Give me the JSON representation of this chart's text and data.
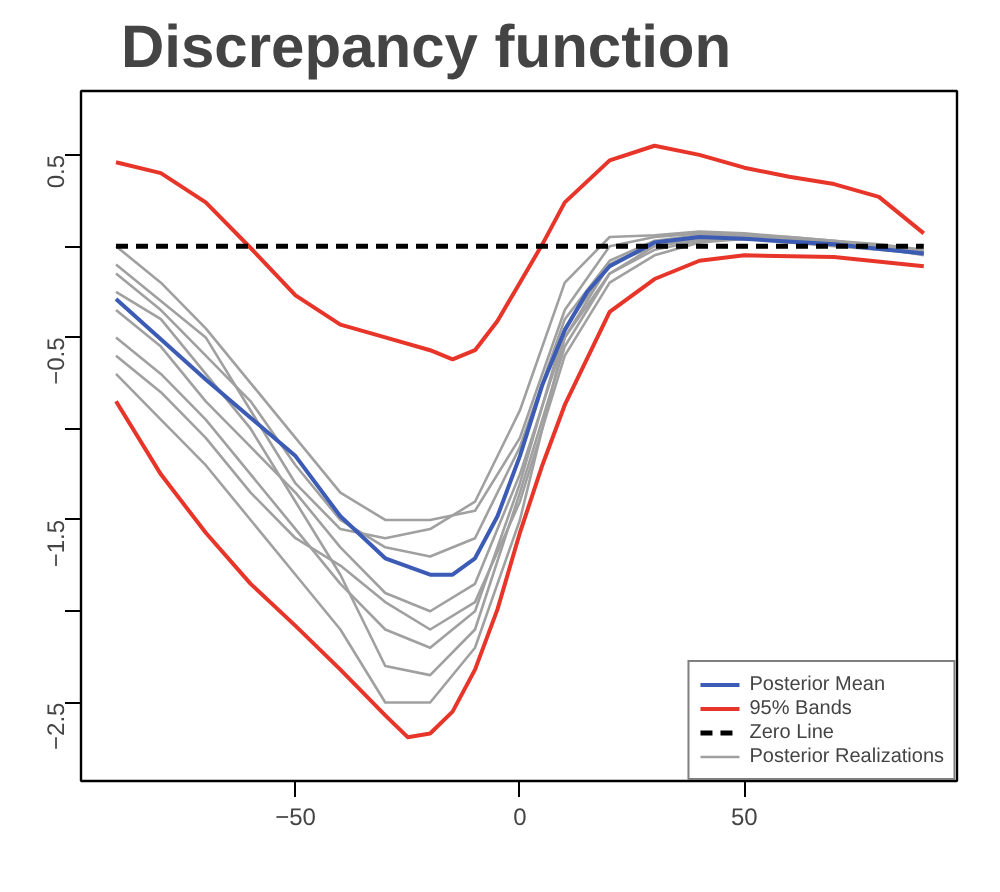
{
  "chart_data": {
    "type": "line",
    "title": "Discrepancy function",
    "x": [
      -90,
      -80,
      -70,
      -60,
      -50,
      -40,
      -30,
      -20,
      -10,
      0,
      10,
      20,
      30,
      40,
      50,
      60,
      70,
      80,
      90
    ],
    "xlim": [
      -97.8,
      97.4
    ],
    "xticks": [
      -50,
      0,
      50
    ],
    "ylim": [
      -2.93,
      0.85
    ],
    "yticks": [
      0.5,
      {
        "value": 0,
        "label": null
      },
      -0.5,
      {
        "value": -1,
        "label": null
      },
      -1.5,
      {
        "value": -2,
        "label": null
      },
      -2.5
    ],
    "grid": false,
    "legend": "bottom right",
    "series": [
      {
        "color": "#a0a0a0",
        "values": [
          -0.7,
          -0.95,
          -1.2,
          -1.5,
          -1.8,
          -2.1,
          -2.5,
          -2.5,
          -2.2,
          -1.5,
          -0.5,
          -0.1,
          0.02,
          0.05,
          0.04,
          0.02,
          0.0,
          -0.02,
          -0.04
        ]
      },
      {
        "color": "#a0a0a0",
        "values": [
          0.0,
          -0.2,
          -0.45,
          -0.75,
          -1.05,
          -1.35,
          -1.5,
          -1.5,
          -1.45,
          -1.05,
          -0.35,
          0.0,
          0.05,
          0.07,
          0.06,
          0.05,
          0.03,
          0.0,
          -0.03
        ]
      },
      {
        "color": "#a0a0a0",
        "values": [
          -0.5,
          -0.7,
          -0.95,
          -1.25,
          -1.55,
          -1.85,
          -2.1,
          -2.2,
          -2.0,
          -1.3,
          -0.45,
          -0.1,
          0.0,
          0.04,
          0.05,
          0.03,
          0.01,
          -0.01,
          -0.04
        ]
      },
      {
        "color": "#a0a0a0",
        "values": [
          -0.15,
          -0.35,
          -0.6,
          -0.85,
          -1.2,
          -1.5,
          -1.65,
          -1.7,
          -1.6,
          -1.1,
          -0.4,
          -0.08,
          0.03,
          0.06,
          0.06,
          0.04,
          0.02,
          0.0,
          -0.03
        ]
      },
      {
        "color": "#a0a0a0",
        "values": [
          -0.35,
          -0.55,
          -0.85,
          -1.1,
          -1.35,
          -1.65,
          -1.9,
          -2.0,
          -1.85,
          -1.25,
          -0.5,
          -0.15,
          -0.02,
          0.03,
          0.04,
          0.03,
          0.01,
          -0.01,
          -0.04
        ]
      },
      {
        "color": "#a0a0a0",
        "values": [
          -0.25,
          -0.4,
          -0.7,
          -1.0,
          -1.4,
          -1.8,
          -2.3,
          -2.35,
          -2.1,
          -1.35,
          -0.55,
          -0.15,
          0.0,
          0.04,
          0.05,
          0.03,
          0.01,
          -0.01,
          -0.04
        ]
      },
      {
        "color": "#a0a0a0",
        "values": [
          -0.1,
          -0.3,
          -0.5,
          -0.9,
          -1.3,
          -1.55,
          -1.6,
          -1.55,
          -1.4,
          -0.9,
          -0.2,
          0.05,
          0.06,
          0.08,
          0.07,
          0.05,
          0.03,
          0.01,
          -0.02
        ]
      },
      {
        "name": "Posterior Realizations",
        "color": "#a0a0a0",
        "values": [
          -0.6,
          -0.8,
          -1.05,
          -1.35,
          -1.6,
          -1.75,
          -1.95,
          -2.1,
          -1.95,
          -1.4,
          -0.6,
          -0.2,
          -0.05,
          0.02,
          0.04,
          0.03,
          0.01,
          -0.01,
          -0.05
        ]
      },
      {
        "name": "Posterior Mean",
        "color": "#3b5bb5",
        "x": [
          -90,
          -70,
          -50,
          -40,
          -30,
          -20,
          -15,
          -10,
          -5,
          0,
          5,
          10,
          15,
          20,
          30,
          40,
          50,
          70,
          90
        ],
        "values": [
          -0.29,
          -0.73,
          -1.15,
          -1.48,
          -1.71,
          -1.8,
          -1.8,
          -1.71,
          -1.48,
          -1.15,
          -0.76,
          -0.46,
          -0.25,
          -0.11,
          0.02,
          0.05,
          0.04,
          0.01,
          -0.04
        ]
      },
      {
        "name": "95% Bands",
        "color": "#e8352a",
        "x": [
          -90,
          -80,
          -70,
          -60,
          -50,
          -40,
          -30,
          -20,
          -15,
          -10,
          -5,
          0,
          5,
          10,
          20,
          30,
          40,
          50,
          60,
          70,
          80,
          90
        ],
        "values": [
          0.46,
          0.4,
          0.24,
          -0.01,
          -0.27,
          -0.43,
          -0.5,
          -0.57,
          -0.62,
          -0.57,
          -0.41,
          -0.2,
          0.01,
          0.24,
          0.47,
          0.55,
          0.5,
          0.43,
          0.38,
          0.34,
          0.27,
          0.07
        ]
      },
      {
        "color": "#e8352a",
        "x": [
          -90,
          -80,
          -70,
          -60,
          -50,
          -40,
          -30,
          -25,
          -20,
          -15,
          -10,
          -5,
          0,
          5,
          10,
          20,
          30,
          40,
          50,
          70,
          90
        ],
        "values": [
          -0.85,
          -1.25,
          -1.57,
          -1.85,
          -2.08,
          -2.32,
          -2.57,
          -2.69,
          -2.67,
          -2.55,
          -2.32,
          -1.99,
          -1.57,
          -1.2,
          -0.87,
          -0.36,
          -0.18,
          -0.08,
          -0.05,
          -0.06,
          -0.11
        ]
      }
    ],
    "ref_lines": [
      {
        "axis": "y",
        "value": 0,
        "label": "Zero Line",
        "color": "#000000",
        "line_style": "dashed"
      }
    ]
  }
}
